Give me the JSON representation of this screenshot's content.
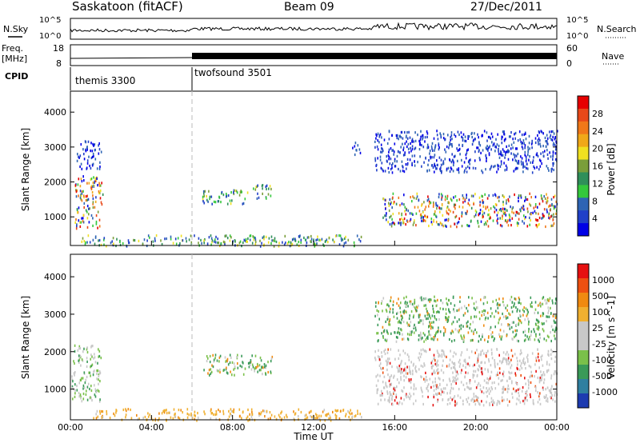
{
  "header": {
    "title": "Saskatoon (fitACF)",
    "beam": "Beam 09",
    "date": "27/Dec/2011"
  },
  "noise_panel": {
    "left_label": "N.Sky",
    "right_label": "N.Search",
    "left_ticks": [
      "10^5",
      "10^0"
    ],
    "right_ticks": [
      "10^5",
      "10^0"
    ]
  },
  "freq_panel": {
    "left_label": "Freq.",
    "left_unit": "[MHz]",
    "right_label": "Nave",
    "left_ticks": [
      "18",
      "8"
    ],
    "right_ticks": [
      "60",
      "0"
    ]
  },
  "cpid_panel": {
    "label": "CPID",
    "modes": [
      {
        "name": "themis 3300",
        "start_hour": 0
      },
      {
        "name": "twofsound 3501",
        "start_hour": 6
      }
    ]
  },
  "time_axis": {
    "label": "Time UT",
    "ticks": [
      "00:00",
      "04:00",
      "08:00",
      "12:00",
      "16:00",
      "20:00",
      "00:00"
    ]
  },
  "chart_data": [
    {
      "type": "heatmap",
      "name": "power",
      "ylabel": "Slant Range [km]",
      "ylim": [
        180,
        4600
      ],
      "xlim": [
        0,
        24
      ],
      "yticks": [
        "4000",
        "3000",
        "2000",
        "1000"
      ],
      "colorbar_label": "Power [dB]",
      "colorbar_ticks": [
        "28",
        "24",
        "20",
        "16",
        "12",
        "8",
        "4"
      ],
      "colormap": [
        "#0000e6",
        "#2040c8",
        "#2e64b4",
        "#34c83c",
        "#2f8f5a",
        "#7a9e3a",
        "#f0e020",
        "#f0a818",
        "#f07818",
        "#e84818",
        "#e60000"
      ],
      "echo_regions": [
        {
          "t0": 0.2,
          "t1": 1.6,
          "r0": 700,
          "r1": 2200,
          "level": "high"
        },
        {
          "t0": 0.3,
          "t1": 1.5,
          "r0": 2400,
          "r1": 3200,
          "level": "low"
        },
        {
          "t0": 6.5,
          "t1": 8.8,
          "r0": 1400,
          "r1": 1800,
          "level": "mid"
        },
        {
          "t0": 9.0,
          "t1": 10.0,
          "r0": 1550,
          "r1": 1950,
          "level": "mid"
        },
        {
          "t0": 13.9,
          "t1": 14.3,
          "r0": 2800,
          "r1": 3200,
          "level": "low"
        },
        {
          "t0": 15.0,
          "t1": 24.0,
          "r0": 2300,
          "r1": 3500,
          "level": "low"
        },
        {
          "t0": 15.4,
          "t1": 24.0,
          "r0": 750,
          "r1": 1700,
          "level": "high"
        },
        {
          "t0": 0.5,
          "t1": 14.5,
          "r0": 190,
          "r1": 500,
          "level": "mid"
        }
      ]
    },
    {
      "type": "heatmap",
      "name": "velocity",
      "ylabel": "Slant Range [km]",
      "ylim": [
        180,
        4600
      ],
      "xlim": [
        0,
        24
      ],
      "yticks": [
        "4000",
        "3000",
        "2000",
        "1000"
      ],
      "colorbar_label": "Velocity [m s^-1]",
      "colorbar_ticks": [
        "1000",
        "500",
        "100",
        "25",
        "-25",
        "-100",
        "-500",
        "-1000"
      ],
      "colormap": [
        "#1d3bb0",
        "#2f7fa0",
        "#3a9a58",
        "#7ac04a",
        "#c8c8c8",
        "#c8c8c8",
        "#f0b030",
        "#f08a10",
        "#ee5010",
        "#e61010"
      ],
      "echo_regions": [
        {
          "t0": 0.0,
          "t1": 1.5,
          "r0": 700,
          "r1": 2200,
          "level": "mixed-gray-green"
        },
        {
          "t0": 6.5,
          "t1": 10.0,
          "r0": 1400,
          "r1": 1950,
          "level": "green-orange"
        },
        {
          "t0": 15.0,
          "t1": 24.0,
          "r0": 600,
          "r1": 2100,
          "level": "gray"
        },
        {
          "t0": 15.0,
          "t1": 24.0,
          "r0": 2300,
          "r1": 3500,
          "level": "green-orange"
        },
        {
          "t0": 1.0,
          "t1": 14.5,
          "r0": 190,
          "r1": 500,
          "level": "yellow"
        }
      ]
    }
  ]
}
